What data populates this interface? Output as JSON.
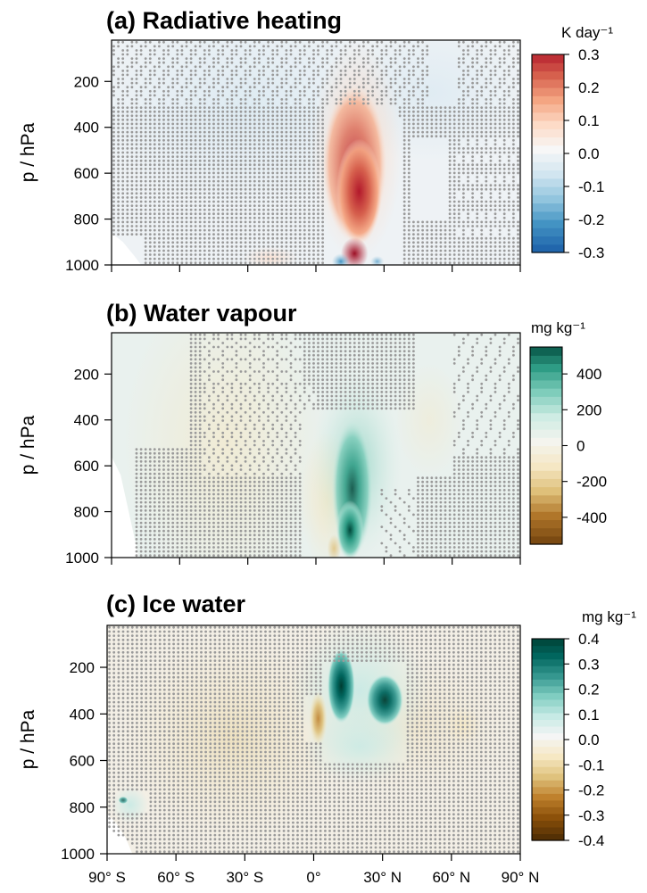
{
  "chart_data": [
    {
      "type": "heatmap",
      "title": "(a) Radiative heating",
      "ylabel": "p / hPa",
      "x_ticks": [
        "90° S",
        "60° S",
        "30° S",
        "0°",
        "30° N",
        "60° N",
        "90° N"
      ],
      "y_ticks": [
        "200",
        "400",
        "600",
        "800",
        "1000"
      ],
      "colorbar": {
        "unit": "K day⁻¹",
        "ticks": [
          "0.3",
          "0.2",
          "0.1",
          "0.0",
          "-0.1",
          "-0.2",
          "-0.3"
        ],
        "range": [
          -0.3,
          0.3
        ],
        "colors": [
          "#2166ac",
          "#4393c3",
          "#92c5de",
          "#d1e5f0",
          "#f7f7f7",
          "#fddbc7",
          "#f4a582",
          "#d6604d",
          "#b2182b"
        ]
      },
      "features": [
        {
          "lat": 18,
          "p": 650,
          "value": 0.25
        },
        {
          "lat": 18,
          "p": 950,
          "value": 0.3
        },
        {
          "lat": 10,
          "p": 980,
          "value": -0.25
        }
      ],
      "stippling": true
    },
    {
      "type": "heatmap",
      "title": "(b) Water vapour",
      "ylabel": "p / hPa",
      "x_ticks": [
        "",
        "",
        "",
        "",
        "",
        "",
        ""
      ],
      "y_ticks": [
        "200",
        "400",
        "600",
        "800",
        "1000"
      ],
      "colorbar": {
        "unit": "mg kg⁻¹",
        "ticks": [
          "400",
          "200",
          "0",
          "-200",
          "-400"
        ],
        "range": [
          -550,
          550
        ],
        "colors": [
          "#7b4a12",
          "#b0762a",
          "#dfc07a",
          "#f5e7c4",
          "#f4f4ee",
          "#cfece4",
          "#7fcdbb",
          "#2e9c85",
          "#00473a"
        ]
      },
      "features": [
        {
          "lat": 15,
          "p": 880,
          "value": 550
        },
        {
          "lat": 18,
          "p": 600,
          "value": 150
        }
      ],
      "stippling": true
    },
    {
      "type": "heatmap",
      "title": "(c) Ice water",
      "ylabel": "p / hPa",
      "x_ticks": [
        "90° S",
        "60° S",
        "30° S",
        "0°",
        "30° N",
        "60° N",
        "90° N"
      ],
      "y_ticks": [
        "200",
        "400",
        "600",
        "800",
        "1000"
      ],
      "colorbar": {
        "unit": "mg kg⁻¹",
        "ticks": [
          "0.4",
          "0.3",
          "0.2",
          "0.1",
          "0.0",
          "-0.1",
          "-0.2",
          "-0.3",
          "-0.4"
        ],
        "range": [
          -0.4,
          0.4
        ],
        "colors": [
          "#543005",
          "#8c510a",
          "#bf812d",
          "#dfc27d",
          "#f6e8c3",
          "#f5f5f5",
          "#c7eae5",
          "#80cdc1",
          "#35978f",
          "#01665e",
          "#003c30"
        ]
      },
      "features": [
        {
          "lat": 12,
          "p": 270,
          "value": 0.4
        },
        {
          "lat": 30,
          "p": 340,
          "value": 0.35
        },
        {
          "lat": 2,
          "p": 420,
          "value": -0.2
        }
      ],
      "stippling": true
    }
  ]
}
